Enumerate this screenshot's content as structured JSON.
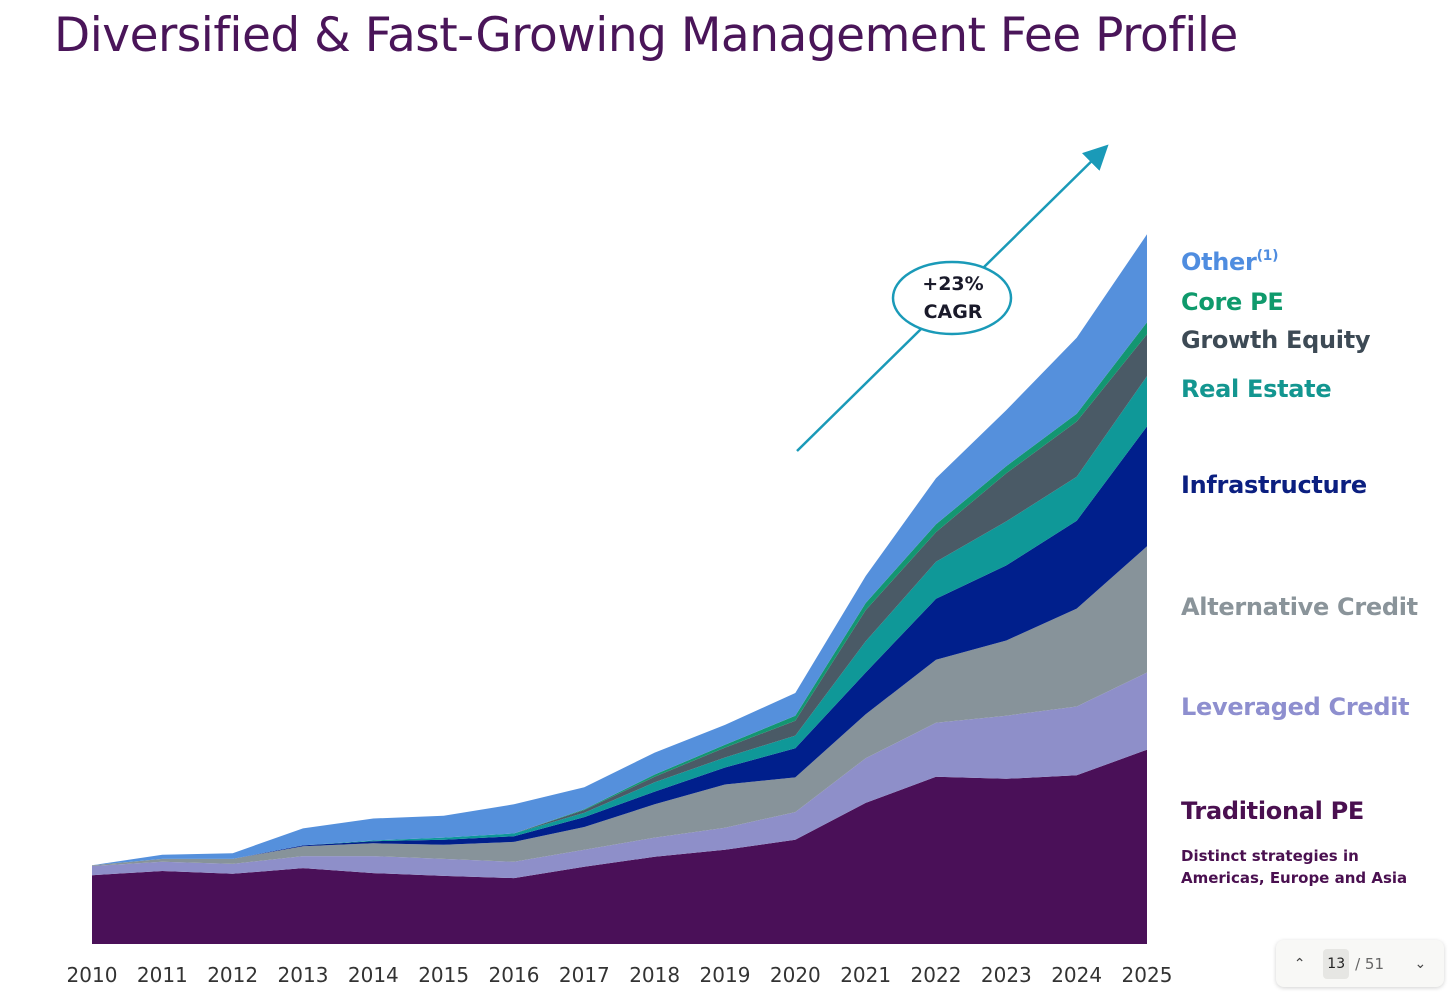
{
  "title": "Diversified & Fast-Growing Management Fee Profile",
  "annotation": {
    "line1": "+23%",
    "line2": "CAGR"
  },
  "legend": {
    "other": "Other",
    "other_footnote": "(1)",
    "core_pe": "Core PE",
    "growth_equity": "Growth Equity",
    "real_estate": "Real Estate",
    "infrastructure": "Infrastructure",
    "alternative_credit": "Alternative Credit",
    "leveraged_credit": "Leveraged Credit",
    "traditional_pe": "Traditional PE",
    "traditional_pe_note": "Distinct strategies in Americas, Europe and Asia"
  },
  "pager": {
    "current": "13",
    "total": "/ 51",
    "prev_icon": "chevron-up-icon",
    "next_icon": "chevron-down-icon"
  },
  "colors": {
    "traditional_pe": "#4a1058",
    "leveraged_credit": "#8e8fc9",
    "alternative_credit": "#87939a",
    "infrastructure": "#001f8c",
    "real_estate": "#0f9898",
    "growth_equity": "#4a5a66",
    "core_pe": "#139671",
    "other": "#5590dc",
    "arrow": "#1a9ab8"
  },
  "chart_data": {
    "type": "area",
    "stacked": true,
    "title": "Diversified & Fast-Growing Management Fee Profile",
    "xlabel": "",
    "ylabel": "",
    "units": "relative index (2025 total = 100); no y-axis shown",
    "x": [
      "2010",
      "2011",
      "2012",
      "2013",
      "2014",
      "2015",
      "2016",
      "2017",
      "2018",
      "2019",
      "2020",
      "2021",
      "2022",
      "2023",
      "2024",
      "2025"
    ],
    "ylim": [
      0,
      100
    ],
    "grid": false,
    "legend_placement": "right",
    "series": [
      {
        "name": "Traditional PE",
        "key": "traditional_pe",
        "values": [
          9.7,
          10.3,
          9.9,
          10.7,
          10.0,
          9.6,
          9.3,
          10.9,
          12.3,
          13.3,
          14.7,
          19.9,
          23.6,
          23.3,
          23.8,
          27.4
        ]
      },
      {
        "name": "Leveraged Credit",
        "key": "leveraged_credit",
        "values": [
          1.3,
          1.3,
          1.4,
          1.7,
          2.4,
          2.4,
          2.3,
          2.4,
          2.7,
          3.1,
          3.9,
          6.3,
          7.6,
          8.9,
          9.7,
          10.9
        ]
      },
      {
        "name": "Alternative Credit",
        "key": "alternative_credit",
        "values": [
          0.1,
          0.4,
          0.7,
          1.4,
          1.8,
          2.0,
          2.8,
          3.2,
          4.7,
          6.1,
          4.9,
          6.2,
          8.9,
          10.6,
          13.8,
          17.8
        ]
      },
      {
        "name": "Infrastructure",
        "key": "infrastructure",
        "values": [
          0,
          0,
          0,
          0.1,
          0.3,
          0.7,
          0.8,
          1.4,
          1.8,
          2.4,
          4.1,
          5.9,
          8.6,
          10.6,
          12.4,
          16.9
        ]
      },
      {
        "name": "Real Estate",
        "key": "real_estate",
        "values": [
          0,
          0,
          0,
          0,
          0.1,
          0.3,
          0.4,
          0.6,
          1.3,
          1.4,
          1.8,
          4.4,
          5.2,
          6.2,
          6.2,
          7.1
        ]
      },
      {
        "name": "Growth Equity",
        "key": "growth_equity",
        "values": [
          0,
          0,
          0,
          0,
          0,
          0,
          0,
          0.4,
          0.8,
          1.4,
          2.1,
          4.4,
          4.2,
          6.8,
          7.8,
          5.9
        ]
      },
      {
        "name": "Core PE",
        "key": "core_pe",
        "values": [
          0,
          0,
          0,
          0,
          0,
          0,
          0,
          0.1,
          0.3,
          0.4,
          0.7,
          1.0,
          1.1,
          1.0,
          1.1,
          1.7
        ]
      },
      {
        "name": "Other",
        "key": "other",
        "values": [
          0,
          0.6,
          0.8,
          2.4,
          3.1,
          3.1,
          4.1,
          3.1,
          3.1,
          2.8,
          3.2,
          3.8,
          6.5,
          7.9,
          10.7,
          12.4
        ]
      }
    ],
    "annotations": [
      "+23% CAGR"
    ]
  }
}
